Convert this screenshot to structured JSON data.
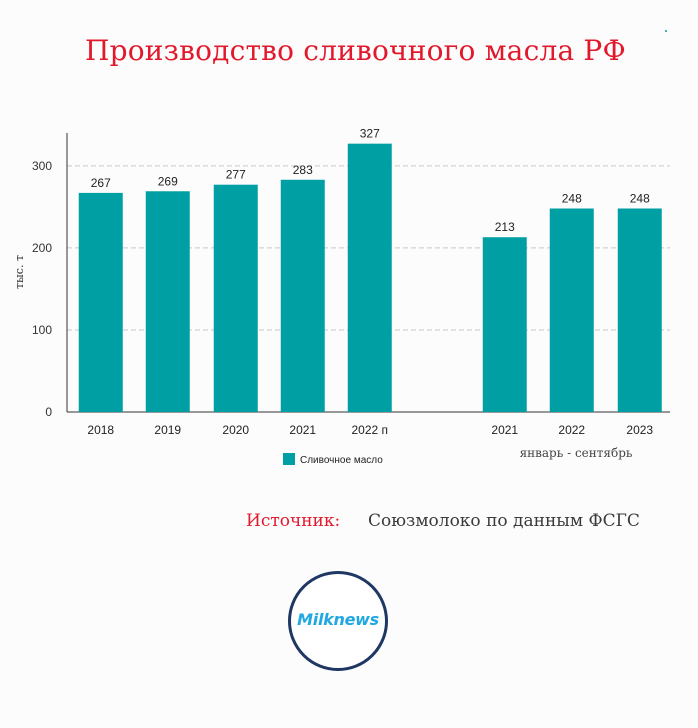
{
  "title": "Производство сливочного масла РФ",
  "source": {
    "label": "Источник:",
    "value": "Союзмолоко по данным ФСГС"
  },
  "logo": {
    "text": "Milknews"
  },
  "colors": {
    "bar": "#009fa3",
    "title": "#e2192c",
    "logo_ring": "#1f3763",
    "logo_text": "#21a8e0"
  },
  "chart_data": {
    "type": "bar",
    "ylabel": "тыс. т",
    "ylim": [
      0,
      340
    ],
    "yticks": [
      0,
      100,
      200,
      300
    ],
    "grid": true,
    "legend": "bottom",
    "series": [
      {
        "name": "Сливочное масло",
        "color": "#009fa3"
      }
    ],
    "groups": [
      {
        "label": "",
        "categories": [
          "2018",
          "2019",
          "2020",
          "2021",
          "2022 п"
        ],
        "values": [
          267,
          269,
          277,
          283,
          327
        ]
      },
      {
        "label": "январь - сентябрь",
        "categories": [
          "2021",
          "2022",
          "2023"
        ],
        "values": [
          213,
          248,
          248
        ]
      }
    ]
  }
}
